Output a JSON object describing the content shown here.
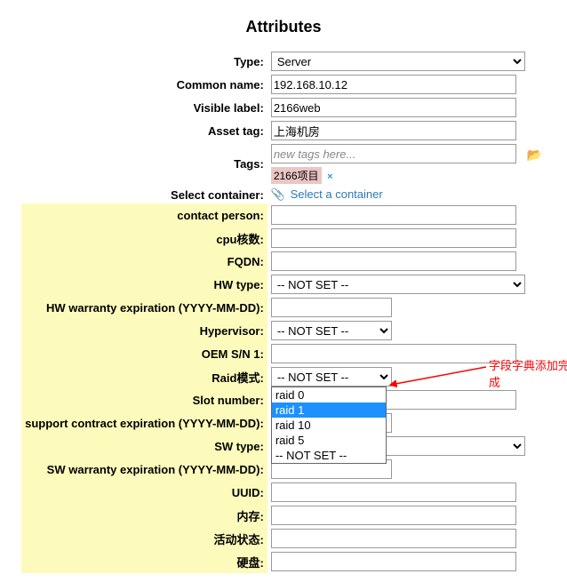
{
  "title": "Attributes",
  "fields": {
    "type": {
      "label": "Type:",
      "value": "Server"
    },
    "common_name": {
      "label": "Common name:",
      "value": "192.168.10.12"
    },
    "visible_label": {
      "label": "Visible label:",
      "value": "2166web"
    },
    "asset_tag": {
      "label": "Asset tag:",
      "value": "上海机房"
    },
    "tags": {
      "label": "Tags:",
      "placeholder": "new tags here...",
      "chip": "2166项目"
    },
    "select_container": {
      "label": "Select container:",
      "link": "Select a container"
    },
    "contact_person": {
      "label": "contact person:"
    },
    "cpu": {
      "label": "cpu核数:"
    },
    "fqdn": {
      "label": "FQDN:"
    },
    "hw_type": {
      "label": "HW type:",
      "value": "-- NOT SET --"
    },
    "hw_warranty": {
      "label": "HW warranty expiration (YYYY-MM-DD):"
    },
    "hypervisor": {
      "label": "Hypervisor:",
      "value": "-- NOT SET --"
    },
    "oem_sn1": {
      "label": "OEM S/N 1:"
    },
    "raid": {
      "label": "Raid模式:",
      "value": "-- NOT SET --",
      "options": [
        "raid 0",
        "raid 1",
        "raid 10",
        "raid 5",
        "-- NOT SET --"
      ],
      "highlighted": "raid 1"
    },
    "slot_number": {
      "label": "Slot number:"
    },
    "support_contract": {
      "label": "support contract expiration (YYYY-MM-DD):"
    },
    "sw_type": {
      "label": "SW type:",
      "value": ""
    },
    "sw_warranty": {
      "label": "SW warranty expiration (YYYY-MM-DD):"
    },
    "uuid": {
      "label": "UUID:"
    },
    "memory": {
      "label": "内存:"
    },
    "status": {
      "label": "活动状态:"
    },
    "disk": {
      "label": "硬盘:"
    }
  },
  "annotation": "字段字典添加完成"
}
